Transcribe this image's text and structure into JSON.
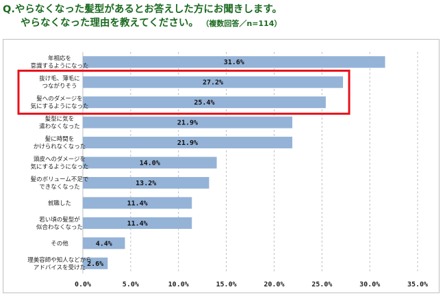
{
  "title": {
    "line1": "Q.やらなくなった髪型があるとお答えした方にお聞きします。",
    "line2": "やらなくなった理由を教えてください。",
    "note": "（複数回答／n=114）"
  },
  "colors": {
    "bar": "#95b3d7",
    "highlight": "#e8121a",
    "grid": "#bfbfbf",
    "title": "#1a6a1f"
  },
  "highlight_indices": [
    1,
    2
  ],
  "chart_data": {
    "type": "bar",
    "orientation": "horizontal",
    "categories": [
      [
        "年相応を",
        "意識するようになった"
      ],
      [
        "抜け毛、薄毛に",
        "つながりそう"
      ],
      [
        "髪へのダメージを",
        "気にするようになった"
      ],
      [
        "髪型に気を",
        "遣わなくなった"
      ],
      [
        "髪に時間を",
        "かけられなくなった"
      ],
      [
        "頭皮へのダメージを",
        "気にするようになった"
      ],
      [
        "髪のボリューム不足で",
        "できなくなった"
      ],
      [
        "就職した"
      ],
      [
        "若い頃の髪型が",
        "似合わなくなった"
      ],
      [
        "その他"
      ],
      [
        "理美容師や知人などから",
        "アドバイスを受けた"
      ]
    ],
    "values": [
      31.6,
      27.2,
      25.4,
      21.9,
      21.9,
      14.0,
      13.2,
      11.4,
      11.4,
      4.4,
      2.6
    ],
    "data_labels": [
      "31.6%",
      "27.2%",
      "25.4%",
      "21.9%",
      "21.9%",
      "14.0%",
      "13.2%",
      "11.4%",
      "11.4%",
      "4.4%",
      "2.6%"
    ],
    "xlim": [
      0,
      35
    ],
    "xticks": [
      0,
      5,
      10,
      15,
      20,
      25,
      30,
      35
    ],
    "xtick_labels": [
      "0.0%",
      "5.0%",
      "10.0%",
      "15.0%",
      "20.0%",
      "25.0%",
      "30.0%",
      "35.0%"
    ],
    "grid": "vertical dashed"
  }
}
